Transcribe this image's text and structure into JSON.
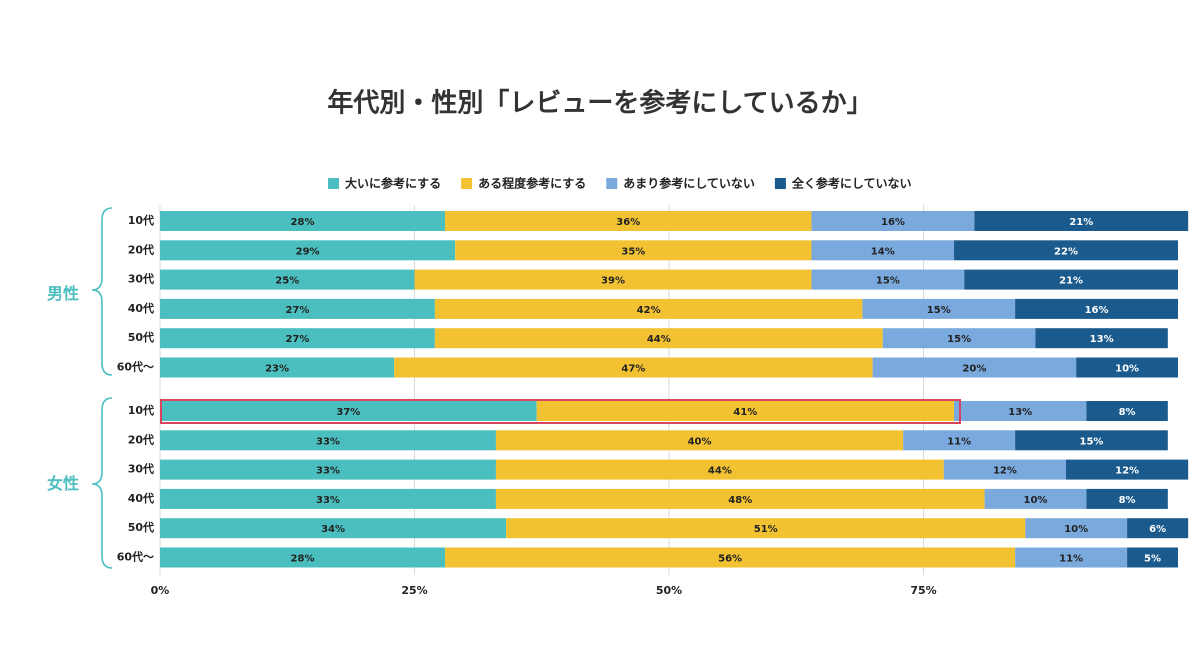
{
  "chart_data": {
    "type": "bar",
    "orientation": "horizontal",
    "stacked": true,
    "title": "年代別・性別「レビューを参考にしているか」",
    "groups": [
      {
        "name": "男性",
        "categories": [
          "10代",
          "20代",
          "30代",
          "40代",
          "50代",
          "60代〜"
        ]
      },
      {
        "name": "女性",
        "categories": [
          "10代",
          "20代",
          "30代",
          "40代",
          "50代",
          "60代〜"
        ]
      }
    ],
    "series": [
      {
        "name": "大いに参考にする",
        "color": "#4bbfbf",
        "values": [
          28,
          29,
          25,
          27,
          27,
          23,
          37,
          33,
          33,
          33,
          34,
          28
        ],
        "value_labels": [
          "28%",
          "29%",
          "25%",
          "27%",
          "27%",
          "23%",
          "37%",
          "33%",
          "33%",
          "33%",
          "34%",
          "28%"
        ]
      },
      {
        "name": "ある程度参考にする",
        "color": "#f2c232",
        "values": [
          36,
          35,
          39,
          42,
          44,
          47,
          41,
          40,
          44,
          48,
          51,
          56
        ],
        "value_labels": [
          "36%",
          "35%",
          "39%",
          "42%",
          "44%",
          "47%",
          "41%",
          "40%",
          "44%",
          "48%",
          "51%",
          "56%"
        ]
      },
      {
        "name": "あまり参考にしていない",
        "color": "#7aa9dd",
        "values": [
          16,
          14,
          15,
          15,
          15,
          20,
          13,
          11,
          12,
          10,
          10,
          11
        ],
        "value_labels": [
          "16%",
          "14%",
          "15%",
          "15%",
          "15%",
          "20%",
          "13%",
          "11%",
          "12%",
          "10%",
          "10%",
          "11%"
        ]
      },
      {
        "name": "全く参考にしていない",
        "color": "#1b5a8c",
        "values": [
          21,
          22,
          21,
          16,
          13,
          10,
          8,
          15,
          12,
          8,
          6,
          5
        ],
        "value_labels": [
          "21%",
          "22%",
          "21%",
          "16%",
          "13%",
          "10%",
          "8%",
          "15%",
          "12%",
          "8%",
          "6%",
          "5%"
        ]
      }
    ],
    "xlim": [
      0,
      100
    ],
    "xticks": [
      {
        "value": 0,
        "label": "0%"
      },
      {
        "value": 25,
        "label": "25%"
      },
      {
        "value": 50,
        "label": "50%"
      },
      {
        "value": 75,
        "label": "75%"
      }
    ],
    "grid": true,
    "legend": "top"
  }
}
